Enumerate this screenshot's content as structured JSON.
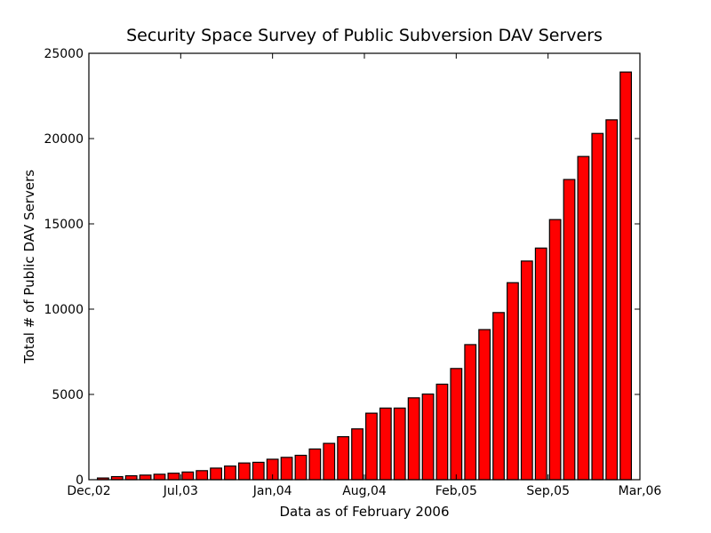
{
  "chart_data": {
    "type": "bar",
    "title": "Security Space Survey of Public Subversion DAV Servers",
    "xlabel": "Data as of February 2006",
    "ylabel": "Total # of Public DAV Servers",
    "ylim": [
      0,
      25000
    ],
    "yticks": [
      0,
      5000,
      10000,
      15000,
      20000,
      25000
    ],
    "xlim": [
      "2002-12",
      "2006-03"
    ],
    "xticks": [
      "Dec,02",
      "Jul,03",
      "Jan,04",
      "Aug,04",
      "Feb,05",
      "Sep,05",
      "Mar,06"
    ],
    "grid": false,
    "bar_color": "#ff0000",
    "edge_color": "#000000",
    "series": [
      {
        "values": [
          100,
          180,
          230,
          270,
          320,
          380,
          450,
          530,
          680,
          800,
          980,
          1020,
          1200,
          1310,
          1430,
          1800,
          2130,
          2520,
          2980,
          3900,
          4200,
          4200,
          4800,
          5020,
          5600,
          6520,
          7920,
          8800,
          9800,
          11550,
          12820,
          13580,
          15250,
          17600,
          18950,
          20300,
          21100,
          23900
        ]
      }
    ]
  }
}
